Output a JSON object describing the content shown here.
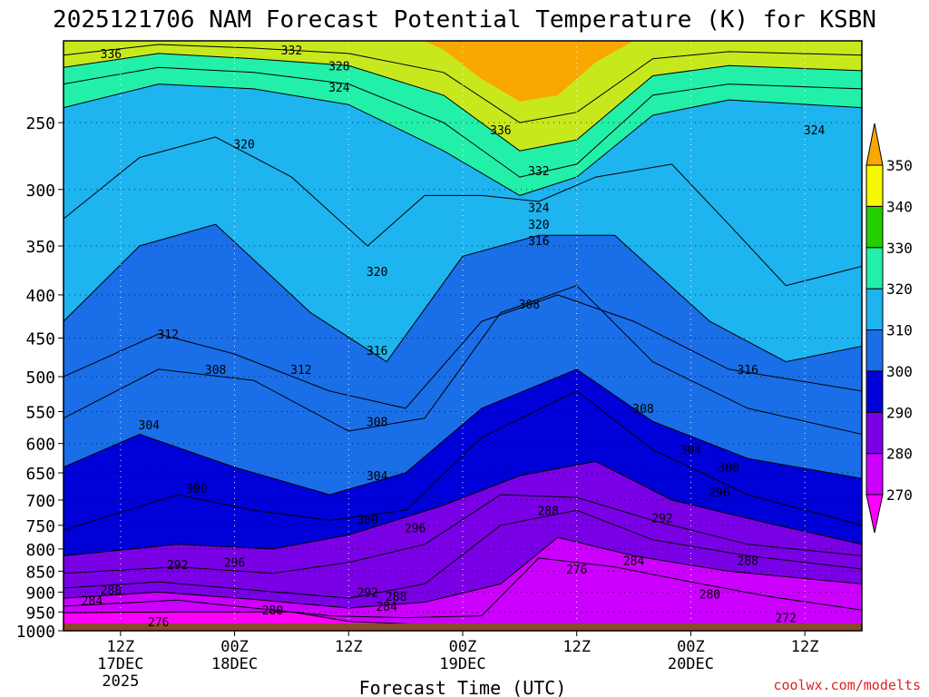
{
  "title": "2025121706 NAM Forecast Potential Temperature (K) for KSBN",
  "xlabel": "Forecast Time (UTC)",
  "credit": "coolwx.com/modelts",
  "colors": {
    "ground": "#8b4a2b",
    "band_270": "#ff00ff",
    "band_280": "#cc00ff",
    "band_290": "#7a00e6",
    "band_300": "#0000d8",
    "band_310": "#1a6ee8",
    "band_320": "#1eb4f0",
    "band_330": "#22f0a8",
    "band_340": "#22d000",
    "band_350": "#f8f800",
    "band_top": "#f8a800",
    "band_upper_330": "#8ee830",
    "band_upper_340": "#c8e81e"
  },
  "chart_data": {
    "type": "heatmap",
    "title": "2025121706 NAM Forecast Potential Temperature (K) for KSBN",
    "xlabel": "Forecast Time (UTC)",
    "ylabel": "",
    "units": "K",
    "x_range_hours": [
      0,
      84
    ],
    "ylim": [
      1000,
      200
    ],
    "y_scale": "log-pressure",
    "y_ticks": [
      {
        "value": 250,
        "label": "250"
      },
      {
        "value": 300,
        "label": "300"
      },
      {
        "value": 350,
        "label": "350"
      },
      {
        "value": 400,
        "label": "400"
      },
      {
        "value": 450,
        "label": "450"
      },
      {
        "value": 500,
        "label": "500"
      },
      {
        "value": 550,
        "label": "550"
      },
      {
        "value": 600,
        "label": "600"
      },
      {
        "value": 650,
        "label": "650"
      },
      {
        "value": 700,
        "label": "700"
      },
      {
        "value": 750,
        "label": "750"
      },
      {
        "value": 800,
        "label": "800"
      },
      {
        "value": 850,
        "label": "850"
      },
      {
        "value": 900,
        "label": "900"
      },
      {
        "value": 950,
        "label": "950"
      },
      {
        "value": 1000,
        "label": "1000"
      }
    ],
    "x_ticks": [
      {
        "hour": 6,
        "lines": [
          "12Z",
          "17DEC",
          "2025"
        ]
      },
      {
        "hour": 18,
        "lines": [
          "00Z",
          "18DEC"
        ]
      },
      {
        "hour": 30,
        "lines": [
          "12Z"
        ]
      },
      {
        "hour": 42,
        "lines": [
          "00Z",
          "19DEC"
        ]
      },
      {
        "hour": 54,
        "lines": [
          "12Z"
        ]
      },
      {
        "hour": 66,
        "lines": [
          "00Z",
          "20DEC"
        ]
      },
      {
        "hour": 78,
        "lines": [
          "12Z"
        ]
      }
    ],
    "colorbar": {
      "levels": [
        270,
        280,
        290,
        300,
        310,
        320,
        330,
        340,
        350
      ],
      "labels": [
        "270",
        "280",
        "290",
        "300",
        "310",
        "320",
        "330",
        "340",
        "350"
      ],
      "colors": [
        "#ff00ff",
        "#cc00ff",
        "#7a00e6",
        "#0000d8",
        "#1a6ee8",
        "#1eb4f0",
        "#22f0a8",
        "#22d000",
        "#f8f800",
        "#f8a800"
      ]
    },
    "isentropes": [
      {
        "theta": 276,
        "points": [
          [
            0,
            952
          ],
          [
            12,
            950
          ],
          [
            24,
            950
          ],
          [
            30,
            975
          ],
          [
            40,
            985
          ],
          [
            50,
            985
          ],
          [
            60,
            985
          ],
          [
            72,
            990
          ],
          [
            84,
            995
          ]
        ]
      },
      {
        "theta": 280,
        "points": [
          [
            0,
            935
          ],
          [
            12,
            920
          ],
          [
            20,
            940
          ],
          [
            28,
            960
          ],
          [
            36,
            965
          ],
          [
            44,
            960
          ],
          [
            50,
            820
          ],
          [
            58,
            840
          ],
          [
            66,
            875
          ],
          [
            74,
            910
          ],
          [
            84,
            945
          ]
        ]
      },
      {
        "theta": 284,
        "points": [
          [
            0,
            915
          ],
          [
            10,
            900
          ],
          [
            20,
            918
          ],
          [
            30,
            940
          ],
          [
            38,
            925
          ],
          [
            46,
            880
          ],
          [
            52,
            775
          ],
          [
            60,
            815
          ],
          [
            70,
            850
          ],
          [
            84,
            880
          ]
        ]
      },
      {
        "theta": 288,
        "points": [
          [
            0,
            890
          ],
          [
            10,
            875
          ],
          [
            20,
            895
          ],
          [
            30,
            915
          ],
          [
            38,
            880
          ],
          [
            46,
            750
          ],
          [
            54,
            720
          ],
          [
            62,
            780
          ],
          [
            72,
            815
          ],
          [
            84,
            845
          ]
        ]
      },
      {
        "theta": 292,
        "points": [
          [
            0,
            855
          ],
          [
            12,
            840
          ],
          [
            22,
            855
          ],
          [
            30,
            830
          ],
          [
            38,
            790
          ],
          [
            46,
            690
          ],
          [
            54,
            695
          ],
          [
            62,
            740
          ],
          [
            72,
            790
          ],
          [
            84,
            815
          ]
        ]
      },
      {
        "theta": 296,
        "points": [
          [
            0,
            815
          ],
          [
            12,
            790
          ],
          [
            22,
            800
          ],
          [
            30,
            770
          ],
          [
            40,
            710
          ],
          [
            48,
            655
          ],
          [
            56,
            630
          ],
          [
            64,
            700
          ],
          [
            74,
            745
          ],
          [
            84,
            790
          ]
        ]
      },
      {
        "theta": 300,
        "points": [
          [
            0,
            760
          ],
          [
            12,
            690
          ],
          [
            20,
            720
          ],
          [
            28,
            740
          ],
          [
            36,
            720
          ],
          [
            44,
            590
          ],
          [
            54,
            520
          ],
          [
            62,
            610
          ],
          [
            72,
            690
          ],
          [
            84,
            750
          ]
        ]
      },
      {
        "theta": 304,
        "points": [
          [
            0,
            640
          ],
          [
            8,
            585
          ],
          [
            18,
            640
          ],
          [
            28,
            690
          ],
          [
            36,
            650
          ],
          [
            44,
            545
          ],
          [
            54,
            490
          ],
          [
            62,
            565
          ],
          [
            72,
            625
          ],
          [
            84,
            660
          ]
        ]
      },
      {
        "theta": 308,
        "points": [
          [
            0,
            560
          ],
          [
            10,
            490
          ],
          [
            20,
            505
          ],
          [
            30,
            580
          ],
          [
            38,
            560
          ],
          [
            46,
            420
          ],
          [
            54,
            390
          ],
          [
            62,
            480
          ],
          [
            72,
            545
          ],
          [
            84,
            585
          ]
        ]
      },
      {
        "theta": 312,
        "points": [
          [
            0,
            500
          ],
          [
            10,
            445
          ],
          [
            18,
            470
          ],
          [
            28,
            520
          ],
          [
            36,
            545
          ],
          [
            44,
            430
          ],
          [
            52,
            400
          ],
          [
            60,
            430
          ],
          [
            70,
            490
          ],
          [
            84,
            520
          ]
        ]
      },
      {
        "theta": 316,
        "points": [
          [
            0,
            430
          ],
          [
            8,
            350
          ],
          [
            16,
            330
          ],
          [
            26,
            420
          ],
          [
            34,
            480
          ],
          [
            42,
            360
          ],
          [
            50,
            340
          ],
          [
            58,
            340
          ],
          [
            68,
            430
          ],
          [
            76,
            480
          ],
          [
            84,
            460
          ]
        ]
      },
      {
        "theta": 320,
        "points": [
          [
            0,
            325
          ],
          [
            8,
            275
          ],
          [
            16,
            260
          ],
          [
            24,
            290
          ],
          [
            32,
            350
          ],
          [
            38,
            305
          ],
          [
            44,
            305
          ],
          [
            50,
            310
          ],
          [
            56,
            290
          ],
          [
            64,
            280
          ],
          [
            70,
            330
          ],
          [
            76,
            390
          ],
          [
            84,
            370
          ]
        ]
      },
      {
        "theta": 324,
        "points": [
          [
            0,
            240
          ],
          [
            10,
            225
          ],
          [
            20,
            228
          ],
          [
            30,
            238
          ],
          [
            40,
            270
          ],
          [
            48,
            305
          ],
          [
            54,
            290
          ],
          [
            62,
            245
          ],
          [
            70,
            235
          ],
          [
            84,
            240
          ]
        ]
      },
      {
        "theta": 328,
        "points": [
          [
            0,
            225
          ],
          [
            10,
            215
          ],
          [
            20,
            218
          ],
          [
            30,
            225
          ],
          [
            40,
            250
          ],
          [
            48,
            290
          ],
          [
            54,
            280
          ],
          [
            62,
            232
          ],
          [
            70,
            225
          ],
          [
            84,
            228
          ]
        ]
      },
      {
        "theta": 332,
        "points": [
          [
            0,
            215
          ],
          [
            10,
            207
          ],
          [
            20,
            210
          ],
          [
            30,
            214
          ],
          [
            40,
            232
          ],
          [
            48,
            270
          ],
          [
            54,
            262
          ],
          [
            62,
            220
          ],
          [
            70,
            214
          ],
          [
            84,
            217
          ]
        ]
      },
      {
        "theta": 336,
        "points": [
          [
            0,
            208
          ],
          [
            10,
            202
          ],
          [
            20,
            204
          ],
          [
            30,
            207
          ],
          [
            40,
            218
          ],
          [
            48,
            250
          ],
          [
            54,
            243
          ],
          [
            62,
            210
          ],
          [
            70,
            206
          ],
          [
            84,
            208
          ]
        ]
      }
    ],
    "contour_labels": [
      {
        "text": "336",
        "hour": 5,
        "p": 207
      },
      {
        "text": "332",
        "hour": 24,
        "p": 205
      },
      {
        "text": "328",
        "hour": 29,
        "p": 214
      },
      {
        "text": "324",
        "hour": 29,
        "p": 227
      },
      {
        "text": "336",
        "hour": 46,
        "p": 255
      },
      {
        "text": "332",
        "hour": 50,
        "p": 285
      },
      {
        "text": "324",
        "hour": 50,
        "p": 315
      },
      {
        "text": "320",
        "hour": 50,
        "p": 330
      },
      {
        "text": "316",
        "hour": 50,
        "p": 345
      },
      {
        "text": "324",
        "hour": 79,
        "p": 255
      },
      {
        "text": "320",
        "hour": 19,
        "p": 265
      },
      {
        "text": "320",
        "hour": 33,
        "p": 375
      },
      {
        "text": "308",
        "hour": 49,
        "p": 410
      },
      {
        "text": "312",
        "hour": 11,
        "p": 445
      },
      {
        "text": "316",
        "hour": 33,
        "p": 465
      },
      {
        "text": "316",
        "hour": 72,
        "p": 490
      },
      {
        "text": "308",
        "hour": 16,
        "p": 490
      },
      {
        "text": "312",
        "hour": 25,
        "p": 490
      },
      {
        "text": "304",
        "hour": 9,
        "p": 570
      },
      {
        "text": "308",
        "hour": 33,
        "p": 565
      },
      {
        "text": "308",
        "hour": 61,
        "p": 545
      },
      {
        "text": "304",
        "hour": 66,
        "p": 610
      },
      {
        "text": "300",
        "hour": 70,
        "p": 640
      },
      {
        "text": "304",
        "hour": 33,
        "p": 655
      },
      {
        "text": "300",
        "hour": 14,
        "p": 678
      },
      {
        "text": "296",
        "hour": 69,
        "p": 685
      },
      {
        "text": "292",
        "hour": 63,
        "p": 735
      },
      {
        "text": "300",
        "hour": 32,
        "p": 738
      },
      {
        "text": "296",
        "hour": 37,
        "p": 755
      },
      {
        "text": "288",
        "hour": 51,
        "p": 720
      },
      {
        "text": "284",
        "hour": 60,
        "p": 825
      },
      {
        "text": "288",
        "hour": 72,
        "p": 825
      },
      {
        "text": "292",
        "hour": 12,
        "p": 835
      },
      {
        "text": "296",
        "hour": 18,
        "p": 830
      },
      {
        "text": "276",
        "hour": 54,
        "p": 845
      },
      {
        "text": "280",
        "hour": 68,
        "p": 905
      },
      {
        "text": "288",
        "hour": 5,
        "p": 895
      },
      {
        "text": "284",
        "hour": 3,
        "p": 920
      },
      {
        "text": "292",
        "hour": 32,
        "p": 900
      },
      {
        "text": "288",
        "hour": 35,
        "p": 910
      },
      {
        "text": "284",
        "hour": 34,
        "p": 935
      },
      {
        "text": "280",
        "hour": 22,
        "p": 945
      },
      {
        "text": "276",
        "hour": 10,
        "p": 975
      },
      {
        "text": "272",
        "hour": 76,
        "p": 965
      }
    ]
  }
}
